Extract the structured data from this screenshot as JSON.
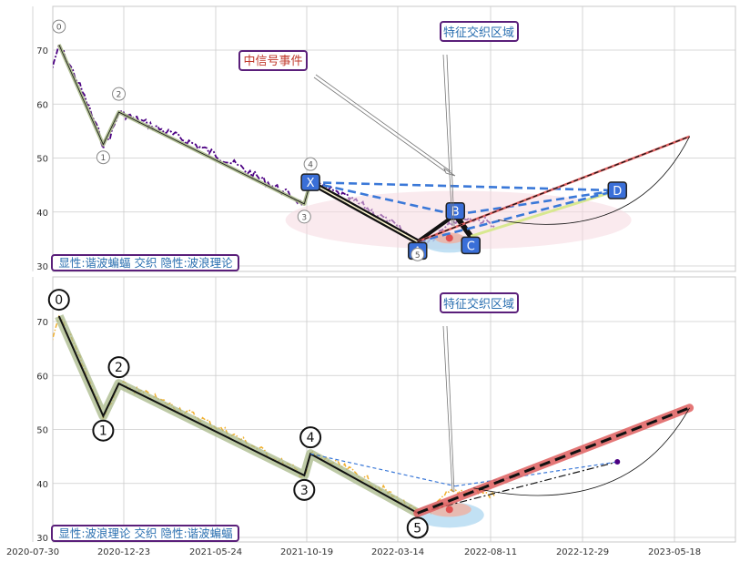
{
  "chart_data": {
    "type": "line",
    "x_ticks": [
      "2020-07-30",
      "2020-12-23",
      "2021-05-24",
      "2021-10-19",
      "2022-03-14",
      "2022-08-11",
      "2022-12-29",
      "2023-05-18"
    ],
    "panels": [
      {
        "id": "top",
        "ylim": [
          29,
          79
        ],
        "y_ticks": [
          30,
          40,
          50,
          60,
          70
        ],
        "price_color": "#4b0082",
        "legend_text": "显性:谐波蝙蝠 交织 隐性:波浪理论",
        "annotations": {
          "signal_event": "中信号事件",
          "feature_zone": "特征交织区域"
        },
        "wave_points": [
          {
            "label": "0",
            "date": "2020-09-10",
            "value": 71
          },
          {
            "label": "1",
            "date": "2020-11-20",
            "value": 52.5
          },
          {
            "label": "2",
            "date": "2020-12-15",
            "value": 58.5
          },
          {
            "label": "3",
            "date": "2021-10-15",
            "value": 41.5
          },
          {
            "label": "4",
            "date": "2021-10-25",
            "value": 45.5
          },
          {
            "label": "5",
            "date": "2022-04-15",
            "value": 34.5
          }
        ],
        "harmonic_points": [
          {
            "label": "X",
            "date": "2021-10-25",
            "value": 45.5
          },
          {
            "label": "A",
            "date": "2022-04-15",
            "value": 34.5
          },
          {
            "label": "B",
            "date": "2022-06-15",
            "value": 39.5
          },
          {
            "label": "C",
            "date": "2022-07-10",
            "value": 35.5
          },
          {
            "label": "D",
            "date": "2023-02-20",
            "value": 44
          }
        ],
        "target_line": {
          "from_date": "2022-04-15",
          "from_value": 34.5,
          "to_date": "2023-06-10",
          "to_value": 54
        }
      },
      {
        "id": "bottom",
        "ylim": [
          29,
          79
        ],
        "y_ticks": [
          30,
          40,
          50,
          60,
          70
        ],
        "price_color": "#f0b030",
        "legend_text": "显性:波浪理论 交织 隐性:谐波蝙蝠",
        "annotations": {
          "feature_zone": "特征交织区域"
        },
        "wave_points": [
          {
            "label": "0",
            "date": "2020-09-10",
            "value": 71
          },
          {
            "label": "1",
            "date": "2020-11-20",
            "value": 52.5
          },
          {
            "label": "2",
            "date": "2020-12-15",
            "value": 58.5
          },
          {
            "label": "3",
            "date": "2021-10-15",
            "value": 41.5
          },
          {
            "label": "4",
            "date": "2021-10-25",
            "value": 45.5
          },
          {
            "label": "5",
            "date": "2022-04-15",
            "value": 34.5
          }
        ],
        "harmonic_points": [
          {
            "date": "2021-10-25",
            "value": 45.5
          },
          {
            "date": "2022-06-15",
            "value": 39.5
          },
          {
            "date": "2023-02-20",
            "value": 44
          }
        ],
        "target_line": {
          "from_date": "2022-04-15",
          "from_value": 34.5,
          "to_date": "2023-06-10",
          "to_value": 54
        }
      }
    ],
    "colors": {
      "wave_line": "#111111",
      "wave_halo": "#a8b888",
      "harmonic_box": "#3a6fd8",
      "harmonic_dash": "#3a78d8",
      "label_purple": "#5a1f7a",
      "label_blue_text": "#2a6fb0",
      "label_red_text": "#c0392b",
      "target_red": "#e06060",
      "zone_pink": "#f6d8e0",
      "zone_blue": "#a8d4f0"
    }
  }
}
